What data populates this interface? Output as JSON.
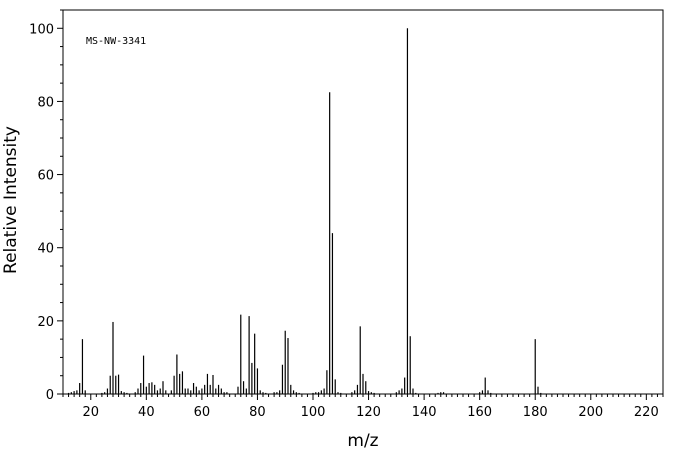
{
  "chart_data": {
    "type": "bar",
    "annotation": "MS-NW-3341",
    "xlabel": "m/z",
    "ylabel": "Relative Intensity",
    "xlim": [
      10,
      226
    ],
    "ylim": [
      0,
      105
    ],
    "x_ticks": [
      20,
      40,
      60,
      80,
      100,
      120,
      140,
      160,
      180,
      200,
      220
    ],
    "y_ticks": [
      0,
      20,
      40,
      60,
      80,
      100
    ],
    "grid": false,
    "peaks": [
      {
        "mz": 12,
        "intensity": 0.3
      },
      {
        "mz": 13,
        "intensity": 0.5
      },
      {
        "mz": 14,
        "intensity": 0.8
      },
      {
        "mz": 15,
        "intensity": 1.0
      },
      {
        "mz": 16,
        "intensity": 3.0
      },
      {
        "mz": 17,
        "intensity": 15.0
      },
      {
        "mz": 18,
        "intensity": 1.0
      },
      {
        "mz": 24,
        "intensity": 0.3
      },
      {
        "mz": 25,
        "intensity": 0.5
      },
      {
        "mz": 26,
        "intensity": 1.5
      },
      {
        "mz": 27,
        "intensity": 5.0
      },
      {
        "mz": 28,
        "intensity": 19.7
      },
      {
        "mz": 29,
        "intensity": 5.0
      },
      {
        "mz": 30,
        "intensity": 5.3
      },
      {
        "mz": 31,
        "intensity": 0.8
      },
      {
        "mz": 32,
        "intensity": 0.5
      },
      {
        "mz": 33,
        "intensity": 0.3
      },
      {
        "mz": 36,
        "intensity": 0.5
      },
      {
        "mz": 37,
        "intensity": 1.5
      },
      {
        "mz": 38,
        "intensity": 3.0
      },
      {
        "mz": 39,
        "intensity": 10.5
      },
      {
        "mz": 40,
        "intensity": 2.0
      },
      {
        "mz": 41,
        "intensity": 3.0
      },
      {
        "mz": 42,
        "intensity": 3.2
      },
      {
        "mz": 43,
        "intensity": 2.5
      },
      {
        "mz": 44,
        "intensity": 1.0
      },
      {
        "mz": 45,
        "intensity": 1.5
      },
      {
        "mz": 46,
        "intensity": 3.5
      },
      {
        "mz": 47,
        "intensity": 1.0
      },
      {
        "mz": 49,
        "intensity": 1.0
      },
      {
        "mz": 50,
        "intensity": 5.0
      },
      {
        "mz": 51,
        "intensity": 10.8
      },
      {
        "mz": 52,
        "intensity": 5.5
      },
      {
        "mz": 53,
        "intensity": 6.2
      },
      {
        "mz": 54,
        "intensity": 1.5
      },
      {
        "mz": 55,
        "intensity": 1.5
      },
      {
        "mz": 56,
        "intensity": 1.0
      },
      {
        "mz": 57,
        "intensity": 3.0
      },
      {
        "mz": 58,
        "intensity": 2.0
      },
      {
        "mz": 59,
        "intensity": 1.0
      },
      {
        "mz": 60,
        "intensity": 1.5
      },
      {
        "mz": 61,
        "intensity": 2.5
      },
      {
        "mz": 62,
        "intensity": 5.5
      },
      {
        "mz": 63,
        "intensity": 2.5
      },
      {
        "mz": 64,
        "intensity": 5.2
      },
      {
        "mz": 65,
        "intensity": 1.5
      },
      {
        "mz": 66,
        "intensity": 2.5
      },
      {
        "mz": 67,
        "intensity": 1.5
      },
      {
        "mz": 68,
        "intensity": 0.5
      },
      {
        "mz": 69,
        "intensity": 0.5
      },
      {
        "mz": 73,
        "intensity": 2.0
      },
      {
        "mz": 74,
        "intensity": 21.7
      },
      {
        "mz": 75,
        "intensity": 3.5
      },
      {
        "mz": 76,
        "intensity": 1.5
      },
      {
        "mz": 77,
        "intensity": 21.3
      },
      {
        "mz": 78,
        "intensity": 8.5
      },
      {
        "mz": 79,
        "intensity": 16.5
      },
      {
        "mz": 80,
        "intensity": 7.0
      },
      {
        "mz": 81,
        "intensity": 1.0
      },
      {
        "mz": 82,
        "intensity": 0.5
      },
      {
        "mz": 83,
        "intensity": 0.3
      },
      {
        "mz": 86,
        "intensity": 0.5
      },
      {
        "mz": 87,
        "intensity": 0.5
      },
      {
        "mz": 88,
        "intensity": 1.0
      },
      {
        "mz": 89,
        "intensity": 8.0
      },
      {
        "mz": 90,
        "intensity": 17.3
      },
      {
        "mz": 91,
        "intensity": 15.3
      },
      {
        "mz": 92,
        "intensity": 2.5
      },
      {
        "mz": 93,
        "intensity": 1.0
      },
      {
        "mz": 94,
        "intensity": 0.5
      },
      {
        "mz": 95,
        "intensity": 0.3
      },
      {
        "mz": 100,
        "intensity": 0.3
      },
      {
        "mz": 101,
        "intensity": 0.5
      },
      {
        "mz": 102,
        "intensity": 0.5
      },
      {
        "mz": 103,
        "intensity": 1.0
      },
      {
        "mz": 104,
        "intensity": 1.5
      },
      {
        "mz": 105,
        "intensity": 6.5
      },
      {
        "mz": 106,
        "intensity": 82.5
      },
      {
        "mz": 107,
        "intensity": 44.0
      },
      {
        "mz": 108,
        "intensity": 4.0
      },
      {
        "mz": 109,
        "intensity": 0.5
      },
      {
        "mz": 110,
        "intensity": 0.3
      },
      {
        "mz": 114,
        "intensity": 0.5
      },
      {
        "mz": 115,
        "intensity": 1.0
      },
      {
        "mz": 116,
        "intensity": 2.5
      },
      {
        "mz": 117,
        "intensity": 18.5
      },
      {
        "mz": 118,
        "intensity": 5.5
      },
      {
        "mz": 119,
        "intensity": 3.5
      },
      {
        "mz": 120,
        "intensity": 0.8
      },
      {
        "mz": 121,
        "intensity": 0.5
      },
      {
        "mz": 122,
        "intensity": 0.3
      },
      {
        "mz": 130,
        "intensity": 0.5
      },
      {
        "mz": 131,
        "intensity": 1.0
      },
      {
        "mz": 132,
        "intensity": 1.5
      },
      {
        "mz": 133,
        "intensity": 4.5
      },
      {
        "mz": 134,
        "intensity": 100.0
      },
      {
        "mz": 135,
        "intensity": 15.8
      },
      {
        "mz": 136,
        "intensity": 1.5
      },
      {
        "mz": 137,
        "intensity": 0.3
      },
      {
        "mz": 145,
        "intensity": 0.3
      },
      {
        "mz": 146,
        "intensity": 0.5
      },
      {
        "mz": 147,
        "intensity": 0.5
      },
      {
        "mz": 160,
        "intensity": 0.5
      },
      {
        "mz": 161,
        "intensity": 1.0
      },
      {
        "mz": 162,
        "intensity": 4.5
      },
      {
        "mz": 163,
        "intensity": 1.0
      },
      {
        "mz": 164,
        "intensity": 0.3
      },
      {
        "mz": 180,
        "intensity": 15.0
      },
      {
        "mz": 181,
        "intensity": 2.0
      },
      {
        "mz": 182,
        "intensity": 0.3
      }
    ]
  }
}
